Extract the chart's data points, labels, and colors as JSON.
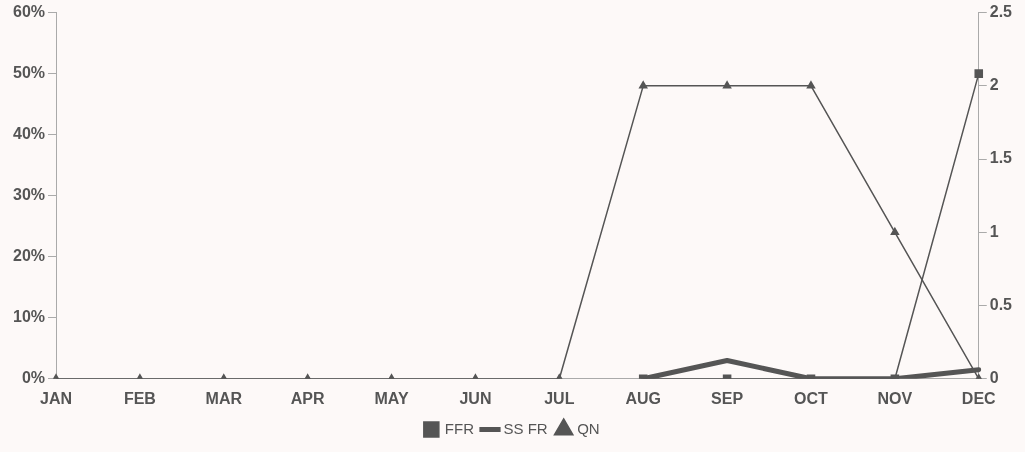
{
  "chart_data": {
    "type": "line",
    "categories": [
      "JAN",
      "FEB",
      "MAR",
      "APR",
      "MAY",
      "JUN",
      "JUL",
      "AUG",
      "SEP",
      "OCT",
      "NOV",
      "DEC"
    ],
    "series": [
      {
        "name": "FFR",
        "color": "#555555",
        "marker": "square",
        "values": [
          null,
          null,
          null,
          null,
          null,
          null,
          null,
          0,
          0,
          0,
          0,
          50
        ]
      },
      {
        "name": "SS FR",
        "color": "#555555",
        "marker": "none",
        "values": [
          null,
          null,
          null,
          null,
          null,
          null,
          null,
          0,
          3,
          0,
          0,
          1.5
        ]
      },
      {
        "name": "QN",
        "color": "#555555",
        "marker": "triangle",
        "axis": "y2",
        "values": [
          0,
          0,
          0,
          0,
          0,
          0,
          0,
          2,
          2,
          2,
          1,
          0
        ]
      }
    ],
    "ylim": [
      0,
      60
    ],
    "yticks": [
      {
        "value": 0,
        "label": "0%"
      },
      {
        "value": 10,
        "label": "10%"
      },
      {
        "value": 20,
        "label": "20%"
      },
      {
        "value": 30,
        "label": "30%"
      },
      {
        "value": 40,
        "label": "40%"
      },
      {
        "value": 50,
        "label": "50%"
      },
      {
        "value": 60,
        "label": "60%"
      }
    ],
    "y2lim": [
      0,
      2.5
    ],
    "y2ticks": [
      0,
      0.5,
      1,
      1.5,
      2,
      2.5
    ],
    "legend": "bottom",
    "grid": false
  }
}
